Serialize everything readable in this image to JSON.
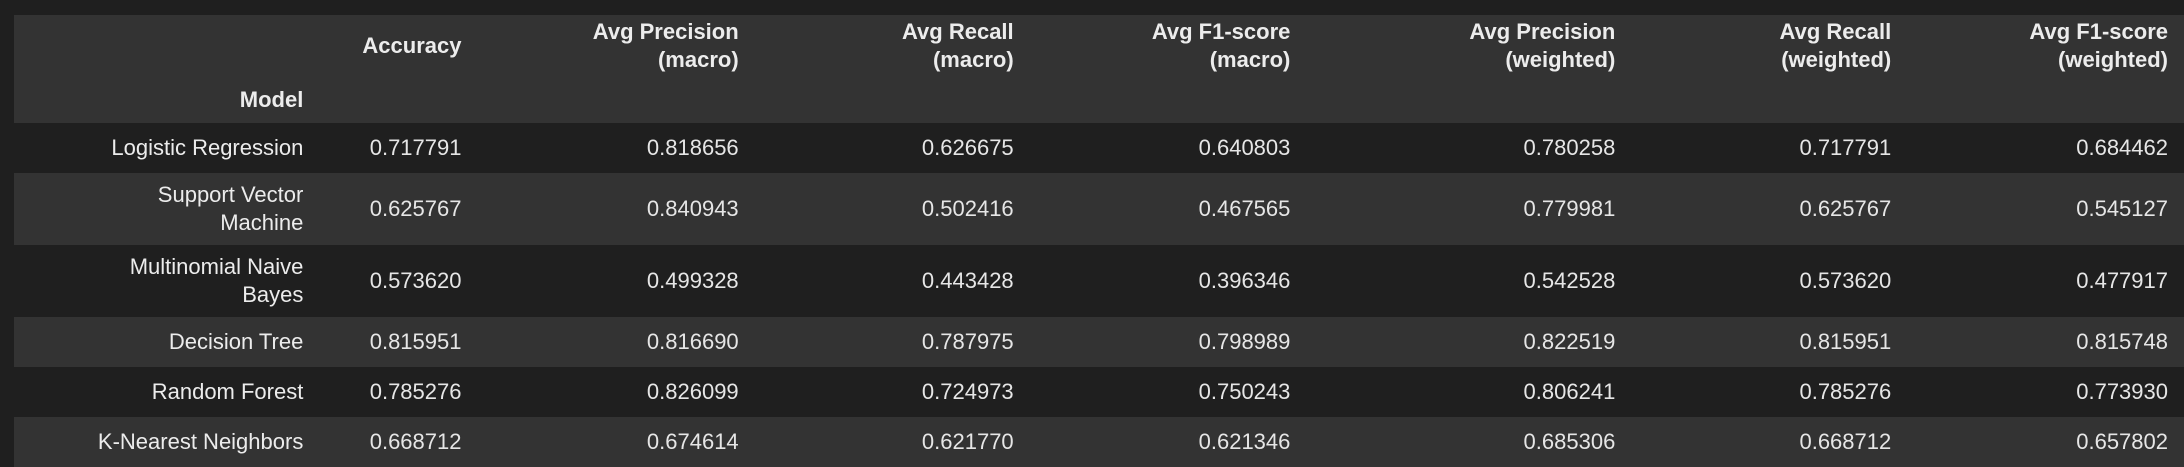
{
  "table": {
    "columns": [
      "",
      "Accuracy",
      "Avg Precision\n(macro)",
      "Avg Recall\n(macro)",
      "Avg F1-score\n(macro)",
      "Avg Precision\n(weighted)",
      "Avg Recall\n(weighted)",
      "Avg F1-score\n(weighted)"
    ],
    "column_lines": [
      [
        ""
      ],
      [
        "Accuracy"
      ],
      [
        "Avg Precision",
        "(macro)"
      ],
      [
        "Avg Recall",
        "(macro)"
      ],
      [
        "Avg F1-score",
        "(macro)"
      ],
      [
        "Avg Precision",
        "(weighted)"
      ],
      [
        "Avg Recall",
        "(weighted)"
      ],
      [
        "Avg F1-score",
        "(weighted)"
      ]
    ],
    "index_name": "Model",
    "rows": [
      {
        "model_lines": [
          "Logistic Regression"
        ],
        "values": [
          "0.717791",
          "0.818656",
          "0.626675",
          "0.640803",
          "0.780258",
          "0.717791",
          "0.684462"
        ]
      },
      {
        "model_lines": [
          "Support Vector",
          "Machine"
        ],
        "values": [
          "0.625767",
          "0.840943",
          "0.502416",
          "0.467565",
          "0.779981",
          "0.625767",
          "0.545127"
        ]
      },
      {
        "model_lines": [
          "Multinomial Naive",
          "Bayes"
        ],
        "values": [
          "0.573620",
          "0.499328",
          "0.443428",
          "0.396346",
          "0.542528",
          "0.573620",
          "0.477917"
        ]
      },
      {
        "model_lines": [
          "Decision Tree"
        ],
        "values": [
          "0.815951",
          "0.816690",
          "0.787975",
          "0.798989",
          "0.822519",
          "0.815951",
          "0.815748"
        ]
      },
      {
        "model_lines": [
          "Random Forest"
        ],
        "values": [
          "0.785276",
          "0.826099",
          "0.724973",
          "0.750243",
          "0.806241",
          "0.785276",
          "0.773930"
        ]
      },
      {
        "model_lines": [
          "K-Nearest Neighbors"
        ],
        "values": [
          "0.668712",
          "0.674614",
          "0.621770",
          "0.621346",
          "0.685306",
          "0.668712",
          "0.657802"
        ]
      }
    ]
  },
  "colors": {
    "background": "#1f1f1f",
    "band": "#333333",
    "text": "#e6e6e6"
  }
}
